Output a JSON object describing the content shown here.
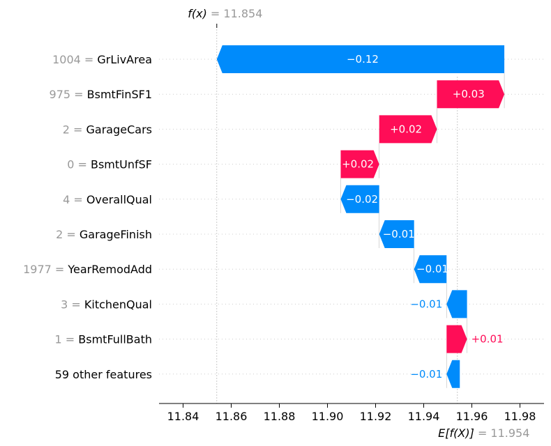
{
  "chart_data": {
    "type": "waterfall",
    "title": "",
    "xlabel": "",
    "ylabel": "",
    "xlim": [
      11.83,
      11.99
    ],
    "x_ticks": [
      "11.84",
      "11.86",
      "11.88",
      "11.90",
      "11.92",
      "11.94",
      "11.96",
      "11.98"
    ],
    "x_tick_values": [
      11.84,
      11.86,
      11.88,
      11.9,
      11.92,
      11.94,
      11.96,
      11.98
    ],
    "fx": {
      "label": "f(x)",
      "value": "= 11.854",
      "x": 11.854
    },
    "efx": {
      "label": "E[f(X)]",
      "value": "= 11.954",
      "x": 11.954
    },
    "colors": {
      "positive": "#ff0d57",
      "negative": "#008bfb",
      "value_text": "#999999"
    },
    "features": [
      {
        "value": "1004",
        "name": "GrLivArea",
        "start": 11.9735,
        "end": 11.854,
        "label": "−0.12",
        "inside": true
      },
      {
        "value": "975",
        "name": "BsmtFinSF1",
        "start": 11.9455,
        "end": 11.9735,
        "label": "+0.03",
        "inside": true
      },
      {
        "value": "2",
        "name": "GarageCars",
        "start": 11.9215,
        "end": 11.9455,
        "label": "+0.02",
        "inside": true
      },
      {
        "value": "0",
        "name": "BsmtUnfSF",
        "start": 11.9055,
        "end": 11.9215,
        "label": "+0.02",
        "inside": true
      },
      {
        "value": "4",
        "name": "OverallQual",
        "start": 11.9215,
        "end": 11.9055,
        "label": "−0.02",
        "inside": true
      },
      {
        "value": "2",
        "name": "GarageFinish",
        "start": 11.936,
        "end": 11.9215,
        "label": "−0.01",
        "inside": true
      },
      {
        "value": "1977",
        "name": "YearRemodAdd",
        "start": 11.9495,
        "end": 11.936,
        "label": "−0.01",
        "inside": true
      },
      {
        "value": "3",
        "name": "KitchenQual",
        "start": 11.958,
        "end": 11.9495,
        "label": "−0.01",
        "inside": false
      },
      {
        "value": "1",
        "name": "BsmtFullBath",
        "start": 11.9495,
        "end": 11.958,
        "label": "+0.01",
        "inside": false
      },
      {
        "value": "",
        "name": "59 other features",
        "start": 11.955,
        "end": 11.9495,
        "label": "−0.01",
        "inside": false
      }
    ]
  }
}
